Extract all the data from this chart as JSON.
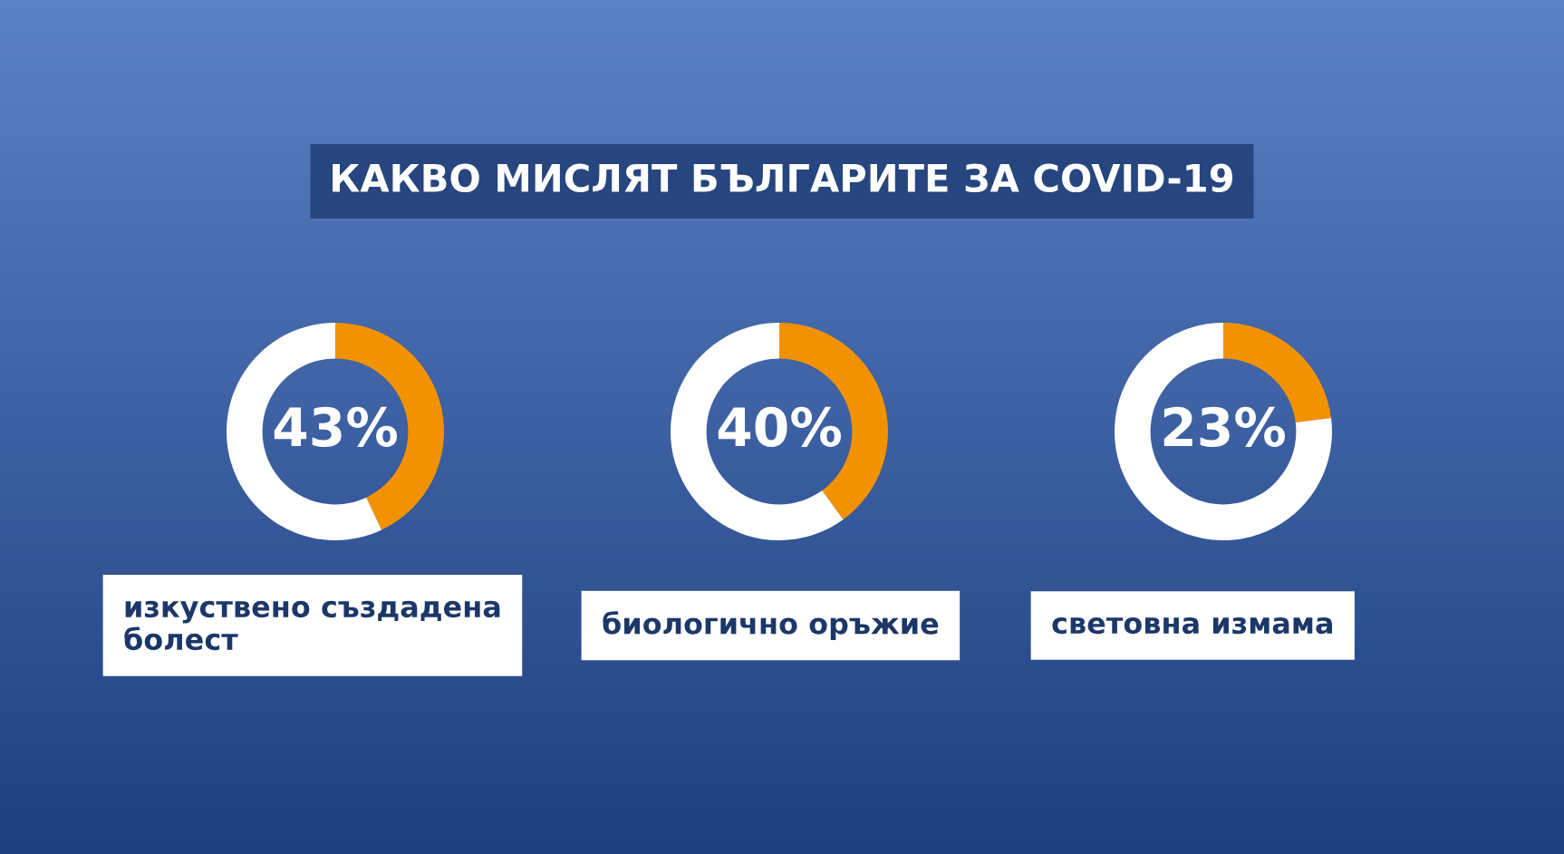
{
  "chart_data": [
    {
      "type": "donut",
      "title": "КАКВО МИСЛЯТ БЪЛГАРИТЕ ЗА COVID-19",
      "xlabel": "изкуствено създадена\nболест",
      "categories": [
        null,
        null
      ],
      "values": [
        43,
        57
      ],
      "colors": [
        "#f39200",
        "#ffffff"
      ],
      "value_labels": [
        "43%",
        null
      ]
    },
    {
      "type": "donut",
      "xlabel": "биологично оръжие",
      "categories": [
        null,
        null
      ],
      "values": [
        40,
        60
      ],
      "colors": [
        "#f39200",
        "#ffffff"
      ],
      "value_labels": [
        "40%",
        null
      ]
    },
    {
      "type": "donut",
      "xlabel": "световна измама",
      "categories": [
        null,
        null
      ],
      "values": [
        23,
        77
      ],
      "colors": [
        "#f39200",
        "#ffffff"
      ],
      "value_labels": [
        "23%",
        null
      ]
    }
  ]
}
